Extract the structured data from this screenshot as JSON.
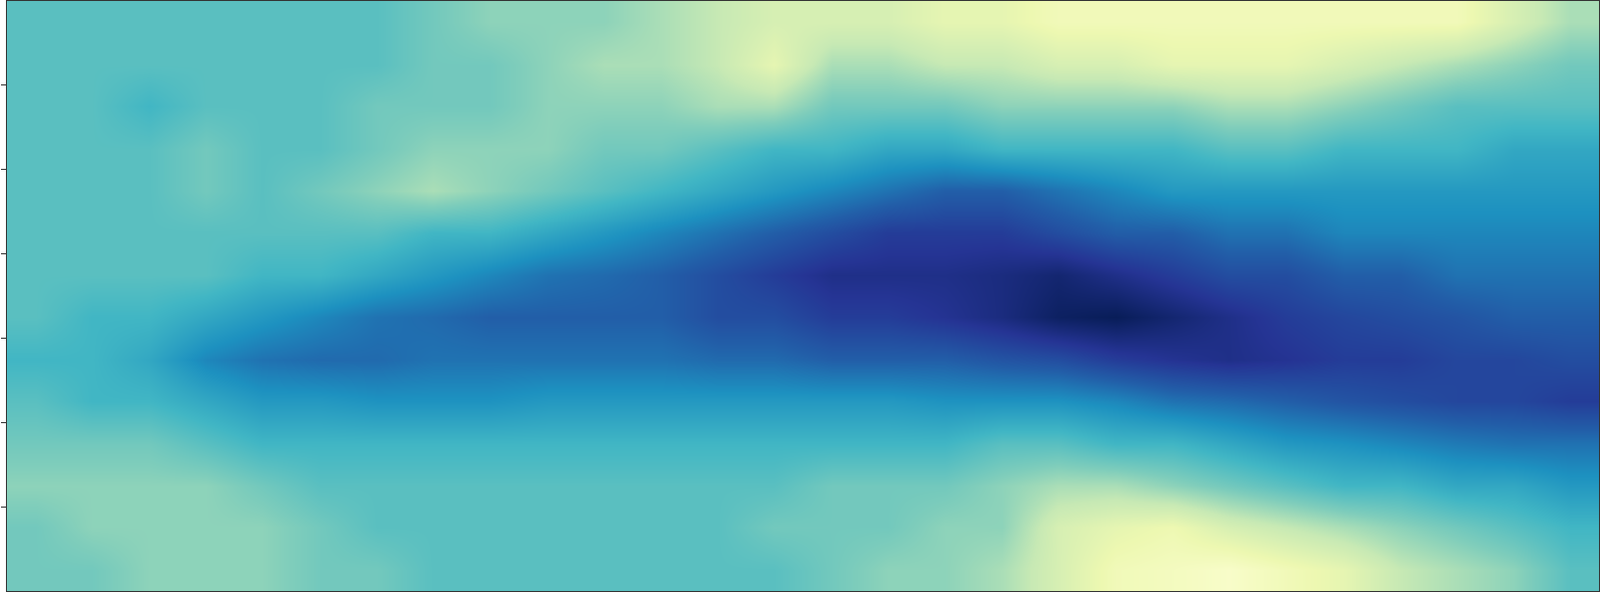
{
  "chart_data": {
    "type": "heatmap",
    "x": [
      0.5,
      1.5,
      2.5,
      3.5,
      4.5,
      5.5,
      6.5,
      7.5,
      8.5,
      9.5,
      10.5,
      11.5,
      12.5,
      13.5,
      14.5,
      15.5,
      16.5,
      17.5,
      18.5,
      19.5,
      20.5,
      21.5,
      22.5,
      23.5,
      24.5,
      25.5,
      26.5,
      27.5
    ],
    "y": [
      0.25,
      0.75,
      1.25,
      1.75,
      2.25,
      2.75,
      3.25,
      3.75,
      4.25,
      4.75,
      5.25,
      5.75,
      6.25,
      6.75
    ],
    "z": [
      [
        0.4,
        0.4,
        0.35,
        0.35,
        0.35,
        0.4,
        0.4,
        0.45,
        0.45,
        0.45,
        0.45,
        0.45,
        0.45,
        0.45,
        0.4,
        0.35,
        0.35,
        0.3,
        0.2,
        0.1,
        0.08,
        0.05,
        0.1,
        0.15,
        0.25,
        0.3,
        0.35,
        0.45
      ],
      [
        0.4,
        0.35,
        0.35,
        0.35,
        0.35,
        0.4,
        0.45,
        0.45,
        0.45,
        0.45,
        0.45,
        0.45,
        0.45,
        0.4,
        0.4,
        0.4,
        0.35,
        0.35,
        0.2,
        0.15,
        0.12,
        0.2,
        0.25,
        0.3,
        0.35,
        0.4,
        0.45,
        0.5
      ],
      [
        0.35,
        0.35,
        0.35,
        0.35,
        0.4,
        0.45,
        0.45,
        0.45,
        0.45,
        0.45,
        0.45,
        0.45,
        0.45,
        0.45,
        0.4,
        0.4,
        0.4,
        0.35,
        0.3,
        0.3,
        0.35,
        0.4,
        0.45,
        0.5,
        0.5,
        0.55,
        0.55,
        0.6
      ],
      [
        0.4,
        0.4,
        0.4,
        0.45,
        0.5,
        0.5,
        0.5,
        0.5,
        0.5,
        0.5,
        0.5,
        0.5,
        0.5,
        0.5,
        0.5,
        0.5,
        0.5,
        0.45,
        0.45,
        0.5,
        0.5,
        0.55,
        0.6,
        0.62,
        0.65,
        0.68,
        0.7,
        0.7
      ],
      [
        0.45,
        0.5,
        0.5,
        0.55,
        0.6,
        0.6,
        0.62,
        0.62,
        0.62,
        0.6,
        0.6,
        0.6,
        0.6,
        0.6,
        0.6,
        0.6,
        0.62,
        0.62,
        0.62,
        0.65,
        0.7,
        0.72,
        0.75,
        0.78,
        0.8,
        0.82,
        0.82,
        0.85
      ],
      [
        0.5,
        0.5,
        0.55,
        0.65,
        0.7,
        0.72,
        0.72,
        0.7,
        0.7,
        0.7,
        0.7,
        0.7,
        0.72,
        0.72,
        0.75,
        0.75,
        0.75,
        0.78,
        0.8,
        0.85,
        0.88,
        0.9,
        0.88,
        0.85,
        0.85,
        0.82,
        0.82,
        0.8
      ],
      [
        0.45,
        0.5,
        0.5,
        0.55,
        0.6,
        0.65,
        0.7,
        0.72,
        0.75,
        0.75,
        0.75,
        0.75,
        0.8,
        0.8,
        0.85,
        0.85,
        0.88,
        0.92,
        0.98,
        1.0,
        0.95,
        0.9,
        0.85,
        0.82,
        0.8,
        0.78,
        0.75,
        0.75
      ],
      [
        0.45,
        0.45,
        0.45,
        0.45,
        0.5,
        0.5,
        0.55,
        0.6,
        0.65,
        0.7,
        0.72,
        0.75,
        0.8,
        0.85,
        0.9,
        0.9,
        0.9,
        0.92,
        0.95,
        0.9,
        0.85,
        0.8,
        0.8,
        0.75,
        0.75,
        0.7,
        0.7,
        0.7
      ],
      [
        0.45,
        0.45,
        0.45,
        0.45,
        0.45,
        0.45,
        0.45,
        0.5,
        0.5,
        0.55,
        0.6,
        0.65,
        0.7,
        0.75,
        0.8,
        0.85,
        0.85,
        0.85,
        0.8,
        0.75,
        0.75,
        0.7,
        0.7,
        0.65,
        0.65,
        0.65,
        0.65,
        0.65
      ],
      [
        0.45,
        0.45,
        0.45,
        0.4,
        0.45,
        0.4,
        0.35,
        0.3,
        0.35,
        0.4,
        0.45,
        0.5,
        0.55,
        0.6,
        0.65,
        0.7,
        0.75,
        0.75,
        0.7,
        0.65,
        0.6,
        0.6,
        0.6,
        0.6,
        0.6,
        0.6,
        0.6,
        0.6
      ],
      [
        0.45,
        0.45,
        0.45,
        0.4,
        0.45,
        0.45,
        0.4,
        0.35,
        0.35,
        0.35,
        0.4,
        0.4,
        0.45,
        0.5,
        0.5,
        0.55,
        0.55,
        0.5,
        0.5,
        0.5,
        0.5,
        0.45,
        0.45,
        0.5,
        0.5,
        0.5,
        0.55,
        0.55
      ],
      [
        0.45,
        0.45,
        0.5,
        0.45,
        0.45,
        0.45,
        0.4,
        0.4,
        0.4,
        0.35,
        0.35,
        0.35,
        0.3,
        0.3,
        0.4,
        0.4,
        0.4,
        0.35,
        0.35,
        0.35,
        0.35,
        0.3,
        0.3,
        0.35,
        0.4,
        0.45,
        0.45,
        0.45
      ],
      [
        0.45,
        0.45,
        0.45,
        0.45,
        0.45,
        0.45,
        0.45,
        0.4,
        0.4,
        0.35,
        0.3,
        0.3,
        0.25,
        0.15,
        0.3,
        0.3,
        0.25,
        0.25,
        0.2,
        0.2,
        0.15,
        0.15,
        0.15,
        0.2,
        0.25,
        0.3,
        0.35,
        0.4
      ],
      [
        0.45,
        0.45,
        0.45,
        0.45,
        0.45,
        0.45,
        0.45,
        0.4,
        0.35,
        0.35,
        0.35,
        0.3,
        0.25,
        0.2,
        0.2,
        0.2,
        0.15,
        0.15,
        0.1,
        0.1,
        0.1,
        0.1,
        0.1,
        0.1,
        0.1,
        0.1,
        0.2,
        0.3
      ]
    ],
    "zlim": [
      0,
      1
    ],
    "color": "YlGnBu",
    "xlim": [
      0,
      28
    ],
    "xticks": [],
    "ylim": [
      0,
      7
    ],
    "yticks": [
      1,
      2,
      3,
      4,
      5,
      6
    ],
    "tick_labels": false
  }
}
